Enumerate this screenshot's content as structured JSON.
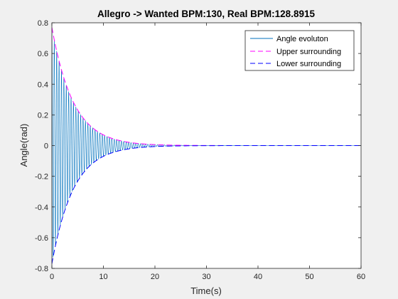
{
  "chart_data": {
    "type": "line",
    "title": "Allegro -> Wanted BPM:130, Real BPM:128.8915",
    "xlabel": "Time(s)",
    "ylabel": "Angle(rad)",
    "xlim": [
      0,
      60
    ],
    "ylim": [
      -0.8,
      0.8
    ],
    "x_ticks": [
      0,
      10,
      20,
      30,
      40,
      50,
      60
    ],
    "y_ticks": [
      -0.8,
      -0.6,
      -0.4,
      -0.2,
      0,
      0.2,
      0.4,
      0.6,
      0.8
    ],
    "x_tick_labels": [
      "0",
      "10",
      "20",
      "30",
      "40",
      "50",
      "60"
    ],
    "y_tick_labels": [
      "-0.8",
      "-0.6",
      "-0.4",
      "-0.2",
      "0",
      "0.2",
      "0.4",
      "0.6",
      "0.8"
    ],
    "grid": false,
    "legend_position": "top-right",
    "series": [
      {
        "name": "Angle evoluton",
        "color": "#0072bd",
        "style": "solid",
        "kind": "damped-oscillation",
        "initial_amplitude": 0.77,
        "decay_rate": 0.24,
        "bpm": 128.8915
      },
      {
        "name": "Upper surrounding",
        "color": "#ff00ff",
        "style": "dashed",
        "kind": "envelope",
        "x": [
          0,
          2,
          4,
          6,
          8,
          10,
          12,
          15,
          20,
          25,
          30,
          40,
          50,
          60
        ],
        "values": [
          0.77,
          0.476,
          0.295,
          0.182,
          0.113,
          0.07,
          0.043,
          0.021,
          0.006,
          0.002,
          0.001,
          0,
          0,
          0
        ]
      },
      {
        "name": "Lower surrounding",
        "color": "#0000ff",
        "style": "dashed",
        "kind": "envelope",
        "x": [
          0,
          2,
          4,
          6,
          8,
          10,
          12,
          15,
          20,
          25,
          30,
          40,
          50,
          60
        ],
        "values": [
          -0.77,
          -0.476,
          -0.295,
          -0.182,
          -0.113,
          -0.07,
          -0.043,
          -0.021,
          -0.006,
          -0.002,
          -0.001,
          0,
          0,
          0
        ]
      }
    ]
  }
}
